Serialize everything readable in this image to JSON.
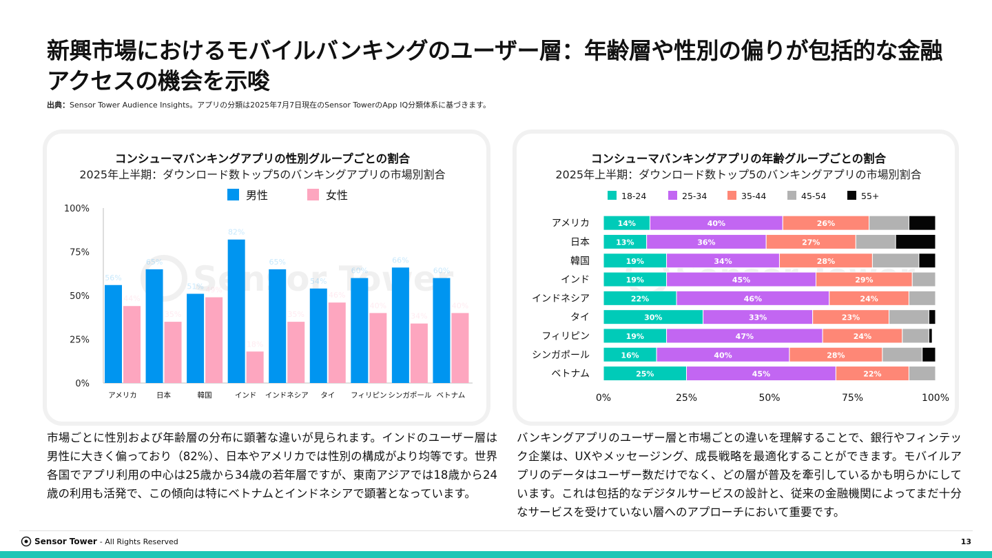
{
  "page": {
    "title": "新興市場におけるモバイルバンキングのユーザー層：年齢層や性別の偏りが包括的な金融アクセスの機会を示唆",
    "source_label": "出典：",
    "source_text": "Sensor Tower Audience Insights。アプリの分類は2025年7月7日現在のSensor TowerのApp IQ分類体系に基づきます。",
    "left_paragraph": "市場ごとに性別および年齢層の分布に顕著な違いが見られます。インドのユーザー層は男性に大きく偏っており（82%）、日本やアメリカでは性別の構成がより均等です。世界各国でアプリ利用の中心は25歳から34歳の若年層ですが、東南アジアでは18歳から24歳の利用も活発で、この傾向は特にベトナムとインドネシアで顕著となっています。",
    "right_paragraph": "バンキングアプリのユーザー層と市場ごとの違いを理解することで、銀行やフィンテック企業は、UXやメッセージング、成長戦略を最適化することができます。モバイルアプリのデータはユーザー数だけでなく、どの層が普及を牽引しているかも明らかにしています。これは包括的なデジタルサービスの設計と、従来の金融機関によってまだ十分なサービスを受けていない層へのアプローチにおいて重要です。",
    "footer_brand": "Sensor Tower",
    "footer_text": "- All Rights Reserved",
    "page_number": "13",
    "watermark": "Sensor Tower"
  },
  "chart_data": [
    {
      "type": "bar",
      "title": "コンシューマバンキングアプリの性別グループごとの割合",
      "subtitle": "2025年上半期：ダウンロード数トップ5のバンキングアプリの市場別割合",
      "categories": [
        "アメリカ",
        "日本",
        "韓国",
        "インド",
        "インドネシア",
        "タイ",
        "フィリピン",
        "シンガポール",
        "ベトナム"
      ],
      "series": [
        {
          "name": "男性",
          "color": "#0095f0",
          "values": [
            56,
            65,
            51,
            82,
            65,
            54,
            60,
            66,
            60
          ]
        },
        {
          "name": "女性",
          "color": "#fda6bf",
          "values": [
            44,
            35,
            49,
            18,
            35,
            46,
            40,
            34,
            40
          ]
        }
      ],
      "y_ticks": [
        "0%",
        "25%",
        "50%",
        "75%",
        "100%"
      ],
      "ylim": [
        0,
        100
      ],
      "legend": "top",
      "grid": false
    },
    {
      "type": "bar",
      "orientation": "horizontal",
      "stacked": true,
      "title": "コンシューマバンキングアプリの年齢グループごとの割合",
      "subtitle": "2025年上半期：ダウンロード数トップ5のバンキングアプリの市場別割合",
      "categories": [
        "アメリカ",
        "日本",
        "韓国",
        "インド",
        "インドネシア",
        "タイ",
        "フィリピン",
        "シンガポール",
        "ベトナム"
      ],
      "series": [
        {
          "name": "18-24",
          "color": "#00cbb8",
          "values": [
            14,
            13,
            19,
            19,
            22,
            30,
            19,
            16,
            25
          ]
        },
        {
          "name": "25-34",
          "color": "#c266f2",
          "values": [
            40,
            36,
            34,
            45,
            46,
            33,
            47,
            40,
            45
          ]
        },
        {
          "name": "35-44",
          "color": "#fe8776",
          "values": [
            26,
            27,
            28,
            29,
            24,
            23,
            24,
            28,
            22
          ]
        },
        {
          "name": "45-54",
          "color": "#b2b2b2",
          "values": [
            12,
            12,
            14,
            7,
            8,
            12,
            8,
            12,
            8
          ]
        },
        {
          "name": "55+",
          "color": "#050505",
          "values": [
            8,
            12,
            5,
            0,
            0,
            2,
            1,
            4,
            0
          ]
        }
      ],
      "x_ticks": [
        "0%",
        "25%",
        "50%",
        "75%",
        "100%"
      ],
      "xlim": [
        0,
        100
      ],
      "legend": "top",
      "grid": false
    }
  ]
}
